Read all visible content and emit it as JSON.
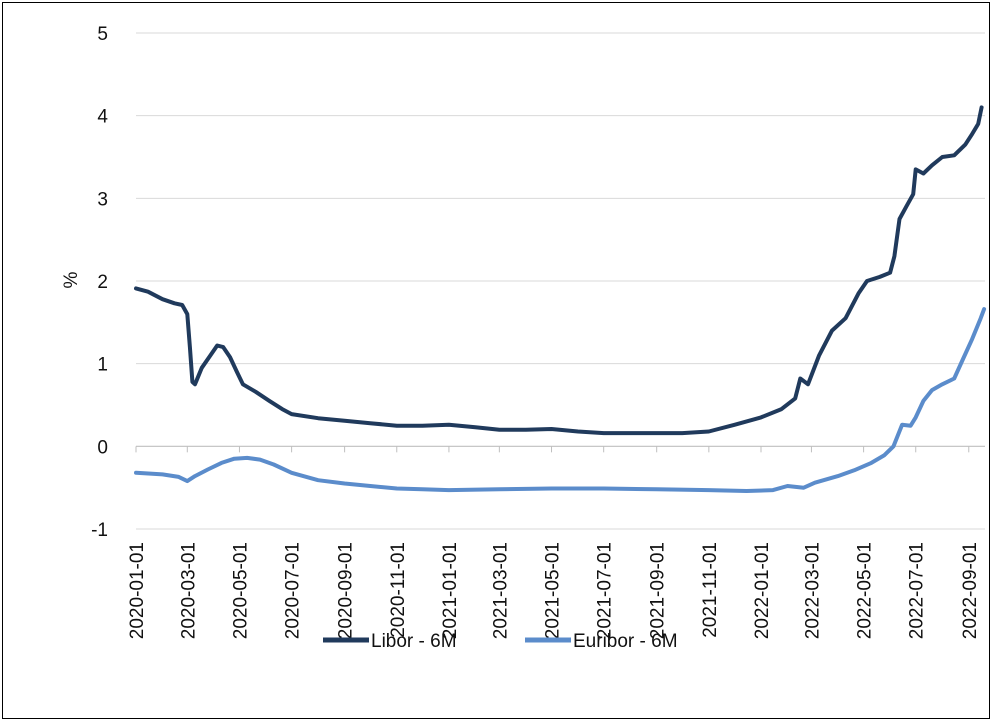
{
  "chart_data": {
    "type": "line",
    "title": "",
    "xlabel": "",
    "ylabel": "%",
    "ylim": [
      -1,
      5
    ],
    "yticks": [
      "-1",
      "0",
      "1",
      "2",
      "3",
      "4",
      "5"
    ],
    "xlim": [
      "2020-01-01",
      "2022-09-20"
    ],
    "xticks": [
      "2020-01-01",
      "2020-03-01",
      "2020-05-01",
      "2020-07-01",
      "2020-09-01",
      "2020-11-01",
      "2021-01-01",
      "2021-03-01",
      "2021-05-01",
      "2021-07-01",
      "2021-09-01",
      "2021-11-01",
      "2022-01-01",
      "2022-03-01",
      "2022-05-01",
      "2022-07-01",
      "2022-09-01"
    ],
    "grid": "horizontal",
    "legend": "bottom",
    "series": [
      {
        "name": "Libor - 6M",
        "color": "#203a5c",
        "points": [
          [
            "2020-01-01",
            1.91
          ],
          [
            "2020-01-15",
            1.87
          ],
          [
            "2020-02-01",
            1.78
          ],
          [
            "2020-02-15",
            1.73
          ],
          [
            "2020-02-24",
            1.71
          ],
          [
            "2020-03-01",
            1.6
          ],
          [
            "2020-03-04",
            1.2
          ],
          [
            "2020-03-07",
            0.78
          ],
          [
            "2020-03-10",
            0.75
          ],
          [
            "2020-03-18",
            0.95
          ],
          [
            "2020-03-28",
            1.1
          ],
          [
            "2020-04-05",
            1.22
          ],
          [
            "2020-04-12",
            1.2
          ],
          [
            "2020-04-20",
            1.08
          ],
          [
            "2020-04-28",
            0.9
          ],
          [
            "2020-05-05",
            0.75
          ],
          [
            "2020-05-20",
            0.66
          ],
          [
            "2020-06-05",
            0.55
          ],
          [
            "2020-06-20",
            0.45
          ],
          [
            "2020-07-01",
            0.39
          ],
          [
            "2020-08-01",
            0.34
          ],
          [
            "2020-09-01",
            0.31
          ],
          [
            "2020-10-01",
            0.28
          ],
          [
            "2020-11-01",
            0.25
          ],
          [
            "2020-12-01",
            0.25
          ],
          [
            "2021-01-01",
            0.26
          ],
          [
            "2021-02-01",
            0.23
          ],
          [
            "2021-03-01",
            0.2
          ],
          [
            "2021-04-01",
            0.2
          ],
          [
            "2021-05-01",
            0.21
          ],
          [
            "2021-06-01",
            0.18
          ],
          [
            "2021-07-01",
            0.16
          ],
          [
            "2021-08-01",
            0.16
          ],
          [
            "2021-09-01",
            0.16
          ],
          [
            "2021-10-01",
            0.16
          ],
          [
            "2021-11-01",
            0.18
          ],
          [
            "2021-12-01",
            0.26
          ],
          [
            "2022-01-01",
            0.35
          ],
          [
            "2022-01-25",
            0.45
          ],
          [
            "2022-02-10",
            0.58
          ],
          [
            "2022-02-16",
            0.82
          ],
          [
            "2022-02-25",
            0.75
          ],
          [
            "2022-03-10",
            1.1
          ],
          [
            "2022-03-25",
            1.4
          ],
          [
            "2022-04-10",
            1.55
          ],
          [
            "2022-04-25",
            1.85
          ],
          [
            "2022-05-05",
            2.0
          ],
          [
            "2022-05-20",
            2.05
          ],
          [
            "2022-06-01",
            2.1
          ],
          [
            "2022-06-06",
            2.3
          ],
          [
            "2022-06-12",
            2.75
          ],
          [
            "2022-06-20",
            2.9
          ],
          [
            "2022-06-28",
            3.05
          ],
          [
            "2022-07-01",
            3.35
          ],
          [
            "2022-07-10",
            3.3
          ],
          [
            "2022-07-20",
            3.4
          ],
          [
            "2022-08-01",
            3.5
          ],
          [
            "2022-08-15",
            3.52
          ],
          [
            "2022-08-28",
            3.65
          ],
          [
            "2022-09-05",
            3.78
          ],
          [
            "2022-09-12",
            3.9
          ],
          [
            "2022-09-16",
            4.1
          ]
        ]
      },
      {
        "name": "Euribor - 6M",
        "color": "#5b8ccb",
        "points": [
          [
            "2020-01-01",
            -0.32
          ],
          [
            "2020-02-01",
            -0.34
          ],
          [
            "2020-02-20",
            -0.37
          ],
          [
            "2020-03-01",
            -0.42
          ],
          [
            "2020-03-10",
            -0.36
          ],
          [
            "2020-03-25",
            -0.28
          ],
          [
            "2020-04-10",
            -0.2
          ],
          [
            "2020-04-25",
            -0.15
          ],
          [
            "2020-05-10",
            -0.14
          ],
          [
            "2020-05-25",
            -0.16
          ],
          [
            "2020-06-10",
            -0.22
          ],
          [
            "2020-07-01",
            -0.32
          ],
          [
            "2020-08-01",
            -0.41
          ],
          [
            "2020-09-01",
            -0.45
          ],
          [
            "2020-10-01",
            -0.48
          ],
          [
            "2020-11-01",
            -0.51
          ],
          [
            "2020-12-01",
            -0.52
          ],
          [
            "2021-01-01",
            -0.53
          ],
          [
            "2021-03-01",
            -0.52
          ],
          [
            "2021-05-01",
            -0.51
          ],
          [
            "2021-07-01",
            -0.51
          ],
          [
            "2021-09-01",
            -0.52
          ],
          [
            "2021-11-01",
            -0.53
          ],
          [
            "2021-12-15",
            -0.54
          ],
          [
            "2022-01-15",
            -0.53
          ],
          [
            "2022-02-01",
            -0.48
          ],
          [
            "2022-02-20",
            -0.5
          ],
          [
            "2022-03-05",
            -0.44
          ],
          [
            "2022-04-01",
            -0.36
          ],
          [
            "2022-04-20",
            -0.29
          ],
          [
            "2022-05-10",
            -0.2
          ],
          [
            "2022-05-25",
            -0.11
          ],
          [
            "2022-06-05",
            0.0
          ],
          [
            "2022-06-15",
            0.26
          ],
          [
            "2022-06-25",
            0.25
          ],
          [
            "2022-07-01",
            0.35
          ],
          [
            "2022-07-10",
            0.55
          ],
          [
            "2022-07-20",
            0.68
          ],
          [
            "2022-08-01",
            0.75
          ],
          [
            "2022-08-15",
            0.82
          ],
          [
            "2022-08-25",
            1.05
          ],
          [
            "2022-09-05",
            1.3
          ],
          [
            "2022-09-15",
            1.55
          ],
          [
            "2022-09-19",
            1.66
          ]
        ]
      }
    ]
  }
}
